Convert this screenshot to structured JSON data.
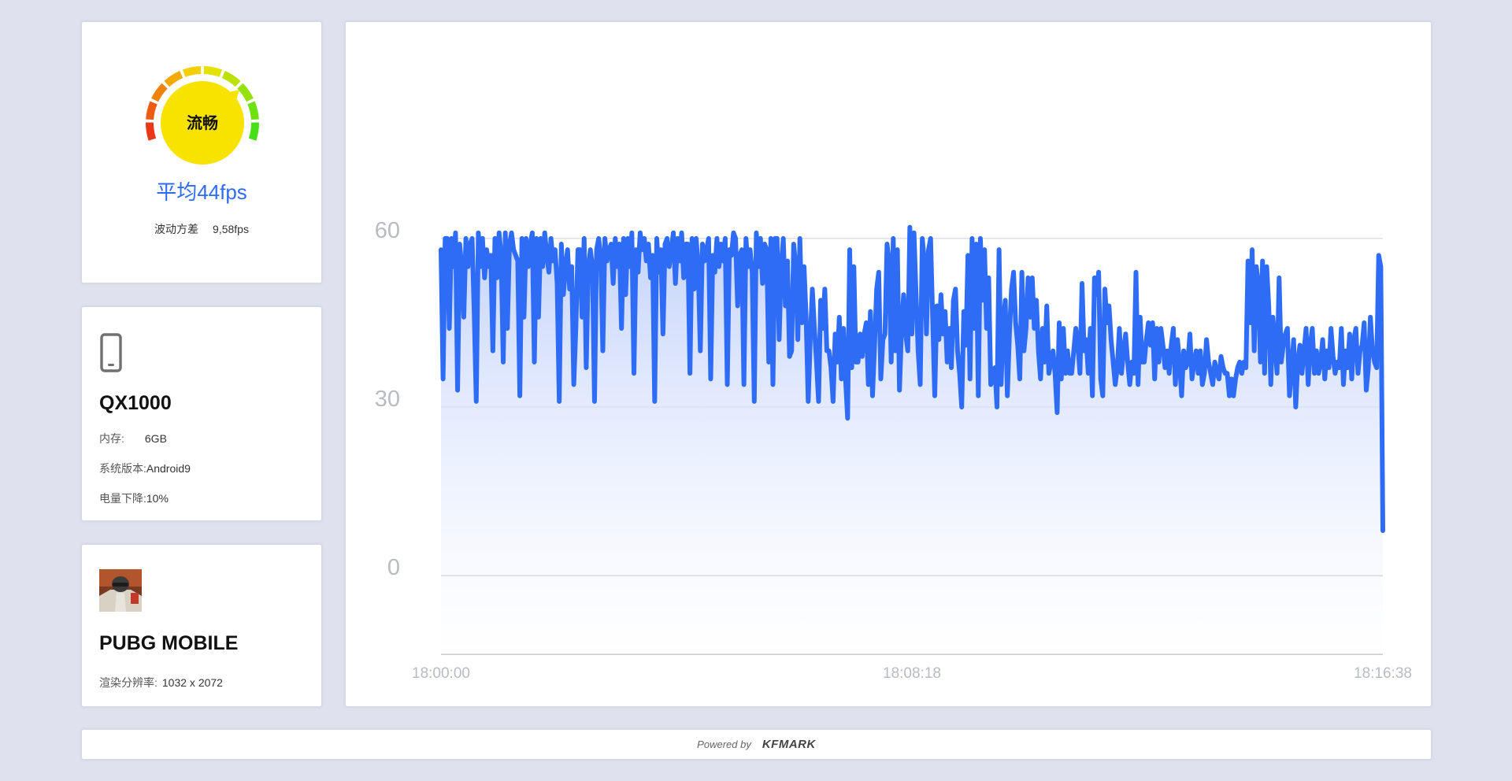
{
  "gauge": {
    "status_label": "流畅",
    "avg_fps": "平均44fps",
    "variance_label": "波动方差",
    "variance_value": "9,58fps",
    "pointer_level": 0.72,
    "colors": {
      "center": "#f7e200",
      "low": "#e8241b",
      "high": "#33e018",
      "accent": "#2f6cf6"
    }
  },
  "device": {
    "icon": "phone-icon",
    "name": "QX1000",
    "memory_label": "内存:",
    "memory_value": "6GB",
    "os_label": "系统版本:",
    "os_value": "Android9",
    "battery_label": "电量下降:",
    "battery_value": "10%"
  },
  "game": {
    "icon": "game-app-icon",
    "name": "PUBG MOBILE",
    "resolution_label": "渲染分辨率:",
    "resolution_value": "1032 x 2072"
  },
  "footer": {
    "powered_by": "Powered by",
    "brand": "KFMARK"
  },
  "chart_data": {
    "type": "area",
    "y_ticks": [
      0,
      30,
      60
    ],
    "x_ticks": [
      "18:00:00",
      "18:08:18",
      "18:16:38"
    ],
    "ylim": [
      -14,
      74
    ],
    "x_range_seconds": 998,
    "line_color": "#2f6cf6",
    "grid": true,
    "series": [
      {
        "values": [
          58,
          35,
          60,
          60,
          44,
          60,
          55,
          61,
          33,
          59,
          55,
          46,
          60,
          55,
          59,
          60,
          47,
          31,
          61,
          55,
          60,
          53,
          58,
          55,
          57,
          40,
          60,
          53,
          61,
          57,
          38,
          61,
          44,
          59,
          61,
          58,
          57,
          56,
          32,
          60,
          46,
          60,
          55,
          59,
          61,
          38,
          60,
          46,
          60,
          55,
          61,
          57,
          54,
          60,
          56,
          58,
          52,
          31,
          59,
          50,
          55,
          58,
          51,
          55,
          34,
          44,
          58,
          58,
          46,
          60,
          37,
          55,
          58,
          55,
          31,
          58,
          60,
          57,
          40,
          60,
          56,
          58,
          59,
          52,
          60,
          55,
          59,
          44,
          60,
          50,
          60,
          55,
          61,
          36,
          58,
          54,
          61,
          58,
          60,
          56,
          59,
          53,
          57,
          31,
          60,
          54,
          58,
          43,
          59,
          60,
          55,
          58,
          61,
          52,
          60,
          56,
          61,
          53,
          59,
          59,
          36,
          60,
          51,
          60,
          55,
          40,
          59,
          56,
          58,
          60,
          35,
          57,
          54,
          60,
          55,
          59,
          56,
          60,
          34,
          58,
          57,
          61,
          60,
          48,
          57,
          58,
          34,
          60,
          55,
          58,
          54,
          31,
          61,
          55,
          60,
          52,
          59,
          58,
          38,
          60,
          34,
          60,
          60,
          42,
          55,
          60,
          48,
          56,
          39,
          40,
          59,
          55,
          42,
          60,
          45,
          55,
          46,
          31,
          42,
          51,
          44,
          38,
          31,
          49,
          44,
          51,
          40,
          40,
          37,
          31,
          43,
          38,
          46,
          35,
          44,
          35,
          28,
          58,
          37,
          55,
          38,
          38,
          43,
          39,
          43,
          45,
          34,
          47,
          32,
          41,
          51,
          54,
          35,
          42,
          43,
          59,
          56,
          38,
          60,
          40,
          58,
          33,
          44,
          50,
          43,
          40,
          62,
          43,
          61,
          50,
          40,
          34,
          60,
          56,
          43,
          58,
          60,
          46,
          32,
          48,
          42,
          50,
          43,
          47,
          38,
          44,
          37,
          49,
          51,
          40,
          36,
          30,
          47,
          41,
          57,
          35,
          60,
          44,
          59,
          32,
          60,
          49,
          58,
          44,
          53,
          34,
          35,
          37,
          30,
          58,
          34,
          45,
          49,
          32,
          43,
          51,
          54,
          45,
          41,
          35,
          54,
          40,
          44,
          53,
          46,
          53,
          44,
          49,
          40,
          35,
          44,
          38,
          48,
          36,
          38,
          40,
          36,
          29,
          45,
          35,
          44,
          36,
          40,
          36,
          36,
          40,
          44,
          41,
          36,
          52,
          40,
          42,
          36,
          44,
          32,
          53,
          50,
          54,
          35,
          32,
          51,
          45,
          48,
          42,
          38,
          34,
          37,
          44,
          36,
          40,
          43,
          38,
          34,
          38,
          36,
          54,
          34,
          46,
          38,
          38,
          42,
          45,
          41,
          45,
          35,
          44,
          38,
          44,
          41,
          37,
          40,
          36,
          41,
          44,
          34,
          42,
          38,
          32,
          40,
          37,
          38,
          43,
          35,
          38,
          40,
          36,
          40,
          34,
          36,
          42,
          38,
          36,
          34,
          38,
          36,
          35,
          39,
          37,
          36,
          36,
          32,
          35,
          32,
          35,
          37,
          38,
          36,
          38,
          37,
          56,
          45,
          58,
          40,
          55,
          52,
          38,
          56,
          36,
          55,
          48,
          34,
          46,
          41,
          36,
          53,
          38,
          41,
          43,
          44,
          32,
          37,
          42,
          30,
          38,
          41,
          36,
          40,
          44,
          34,
          41,
          44,
          36,
          40,
          36,
          38,
          42,
          35,
          40,
          37,
          44,
          39,
          36,
          38,
          37,
          44,
          34,
          40,
          37,
          43,
          35,
          42,
          44,
          36,
          40,
          41,
          45,
          33,
          37,
          46,
          40,
          38,
          37,
          57,
          55,
          8
        ]
      }
    ]
  }
}
